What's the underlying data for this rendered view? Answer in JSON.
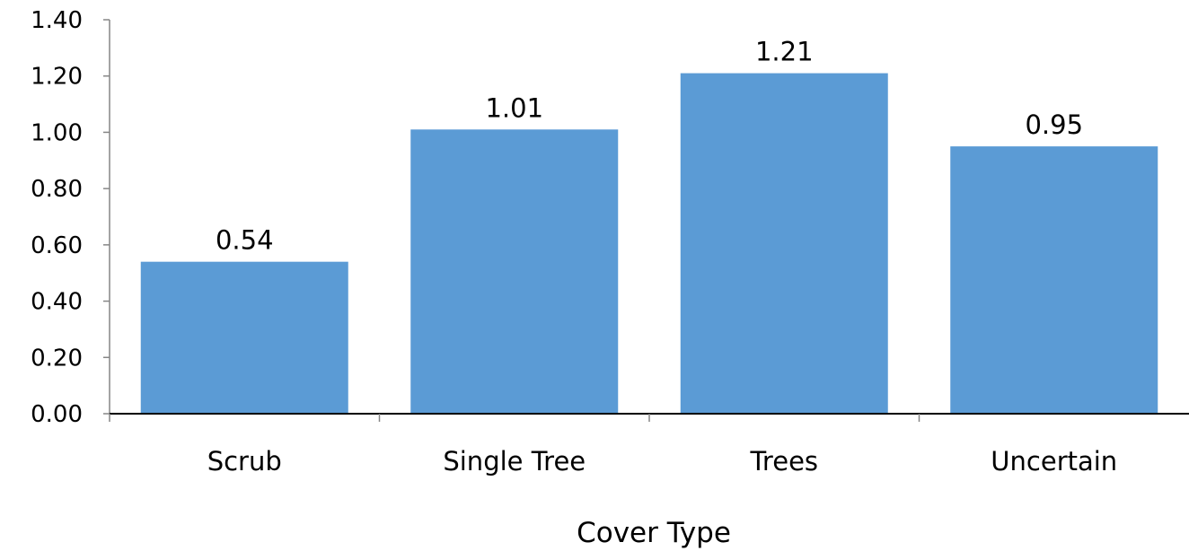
{
  "chart_data": {
    "type": "bar",
    "title": "",
    "xlabel": "Cover Type",
    "ylabel": "",
    "categories": [
      "Scrub",
      "Single Tree",
      "Trees",
      "Uncertain"
    ],
    "values": [
      0.54,
      1.01,
      1.21,
      0.95
    ],
    "value_labels": [
      "0.54",
      "1.01",
      "1.21",
      "0.95"
    ],
    "ylim": [
      0,
      1.4
    ],
    "yticks": [
      "0.00",
      "0.20",
      "0.40",
      "0.60",
      "0.80",
      "1.00",
      "1.20",
      "1.40"
    ],
    "grid": false,
    "legend": "none",
    "bar_color": "#5B9BD5",
    "axis_color": "#000000"
  }
}
